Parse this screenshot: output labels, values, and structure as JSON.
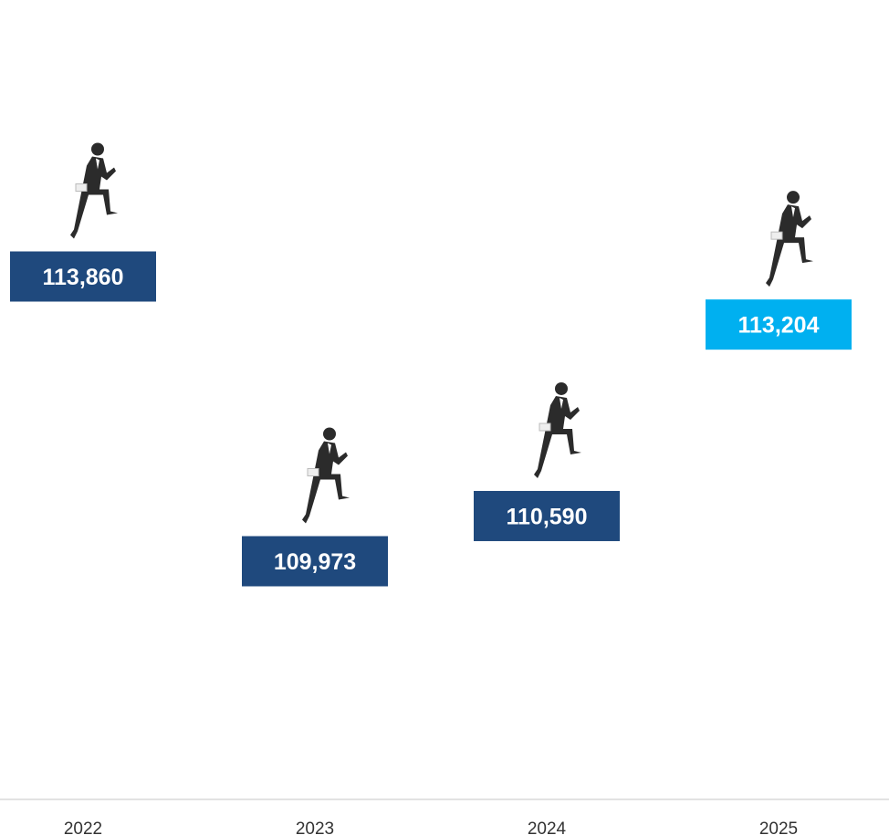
{
  "chart_data": {
    "type": "pictogram",
    "categories": [
      "2022",
      "2023",
      "2024",
      "2025"
    ],
    "values": [
      113860,
      109973,
      110590,
      113204
    ],
    "value_labels": [
      "113,860",
      "109,973",
      "110,590",
      "113,204"
    ],
    "colors": [
      "#1f497d",
      "#1f497d",
      "#1f497d",
      "#00b0f0"
    ]
  }
}
